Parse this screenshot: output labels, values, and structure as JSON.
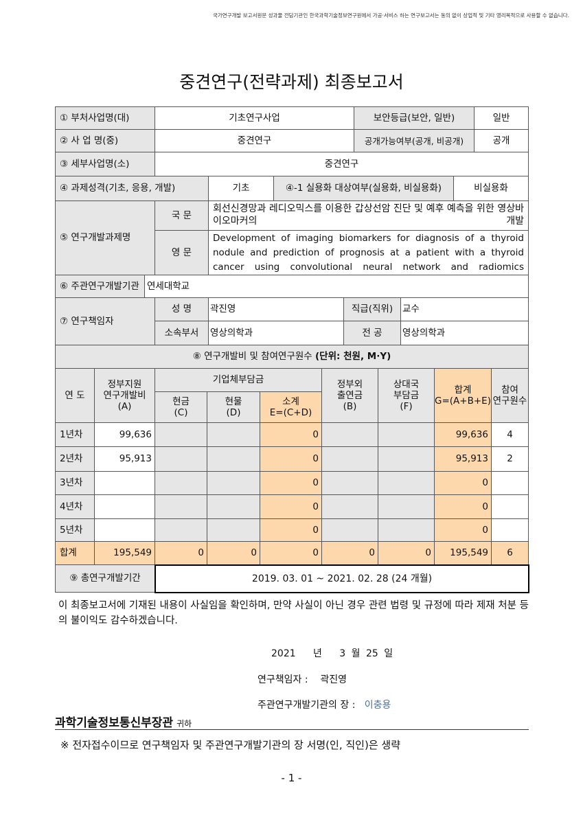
{
  "disclaimer": "국가연구개발 보고서원문 성과물 전담기관인 한국과학기술정보연구원에서 가공·서비스 하는 연구보고서는 동의 없이 상업적 및 기타 영리목적으로 사용할 수 없습니다.",
  "title": "중견연구(전략과제) 최종보고서",
  "info": {
    "r1": {
      "label": "① 부처사업명(대)",
      "value": "기초연구사업",
      "label2": "보안등급(보안, 일반)",
      "value2": "일반"
    },
    "r2": {
      "label": "② 사 업 명(중)",
      "value": "중견연구",
      "label2": "공개가능여부(공개, 비공개)",
      "value2": "공개"
    },
    "r3": {
      "label": "③ 세부사업명(소)",
      "value": "중견연구"
    },
    "r4": {
      "label": "④ 과제성격(기초, 응용, 개발)",
      "value": "기초",
      "label2": "④-1 실용화 대상여부(실용화, 비실용화)",
      "value2": "비실용화"
    },
    "r5": {
      "label": "⑤ 연구개발과제명",
      "ko_label": "국 문",
      "ko": "회선신경망과 레디오믹스를 이용한 갑상선암 진단 및 예후 예측을 위한 영상바이오마커의 개발",
      "en_label": "영 문",
      "en": "Development of imaging biomarkers for diagnosis of a thyroid nodule and prediction of prognosis at a patient with a thyroid cancer using convolutional neural network and radiomics"
    },
    "r6": {
      "label": "⑥ 주관연구개발기관",
      "value": "연세대학교"
    },
    "r7": {
      "label": "⑦ 연구책임자",
      "name_label": "성 명",
      "name": "곽진영",
      "rank_label": "직급(직위)",
      "rank": "교수",
      "dept_label": "소속부서",
      "dept": "영상의학과",
      "major_label": "전 공",
      "major": "영상의학과"
    }
  },
  "funding": {
    "title_prefix": "⑧ 연구개발비 및 참여연구원수 ",
    "title_unit": "(단위: 천원, M·Y)",
    "headers": {
      "year": "연 도",
      "gov": "정부지원\n연구개발비\n(A)",
      "corp": "기업체부담금",
      "cash": "현금\n(C)",
      "inkind": "현물\n(D)",
      "subtotal": "소계\nE=(C+D)",
      "nongov": "정부외\n출연금\n(B)",
      "partner": "상대국\n부담금\n(F)",
      "total": "합계\nG=(A+B+E)",
      "researchers": "참여\n연구원수"
    },
    "rows": [
      {
        "year": "1년차",
        "gov": "99,636",
        "cash": "",
        "inkind": "",
        "subtotal": "0",
        "nongov": "",
        "partner": "",
        "total": "99,636",
        "researchers": "4"
      },
      {
        "year": "2년차",
        "gov": "95,913",
        "cash": "",
        "inkind": "",
        "subtotal": "0",
        "nongov": "",
        "partner": "",
        "total": "95,913",
        "researchers": "2"
      },
      {
        "year": "3년차",
        "gov": "",
        "cash": "",
        "inkind": "",
        "subtotal": "0",
        "nongov": "",
        "partner": "",
        "total": "0",
        "researchers": ""
      },
      {
        "year": "4년차",
        "gov": "",
        "cash": "",
        "inkind": "",
        "subtotal": "0",
        "nongov": "",
        "partner": "",
        "total": "0",
        "researchers": ""
      },
      {
        "year": "5년차",
        "gov": "",
        "cash": "",
        "inkind": "",
        "subtotal": "0",
        "nongov": "",
        "partner": "",
        "total": "0",
        "researchers": ""
      }
    ],
    "sum": {
      "year": "합계",
      "gov": "195,549",
      "cash": "0",
      "inkind": "0",
      "subtotal": "0",
      "nongov": "0",
      "partner": "0",
      "total": "195,549",
      "researchers": "6"
    }
  },
  "period": {
    "label": "⑨ 총연구개발기간",
    "value": "2019. 03. 01 ~ 2021. 02. 28 (24 개월)"
  },
  "statement": "이 최종보고서에 기재된 내용이 사실임을 확인하며, 만약 사실이 아닌 경우 관련 법령 및 규정에 따라 제재 처분 등의 불이익도 감수하겠습니다.",
  "date": {
    "year": "2021",
    "y": "년",
    "month": "3",
    "m": "월",
    "day": "25",
    "d": "일"
  },
  "pi": {
    "label": "연구책임자 :",
    "name": "곽진영"
  },
  "head": {
    "label": "주관연구개발기관의 장 :",
    "name": "이충용"
  },
  "recipient": {
    "name": "과학기술정보통신부장관",
    "suffix": "귀하"
  },
  "note": "※ 전자접수이므로 연구책임자 및 주관연구개발기관의 장 서명(인, 직인)은 생략",
  "page_number": "- 1 -",
  "colors": {
    "label_gray": "#e6e6e6",
    "sum_orange": "#fdd8ad"
  }
}
